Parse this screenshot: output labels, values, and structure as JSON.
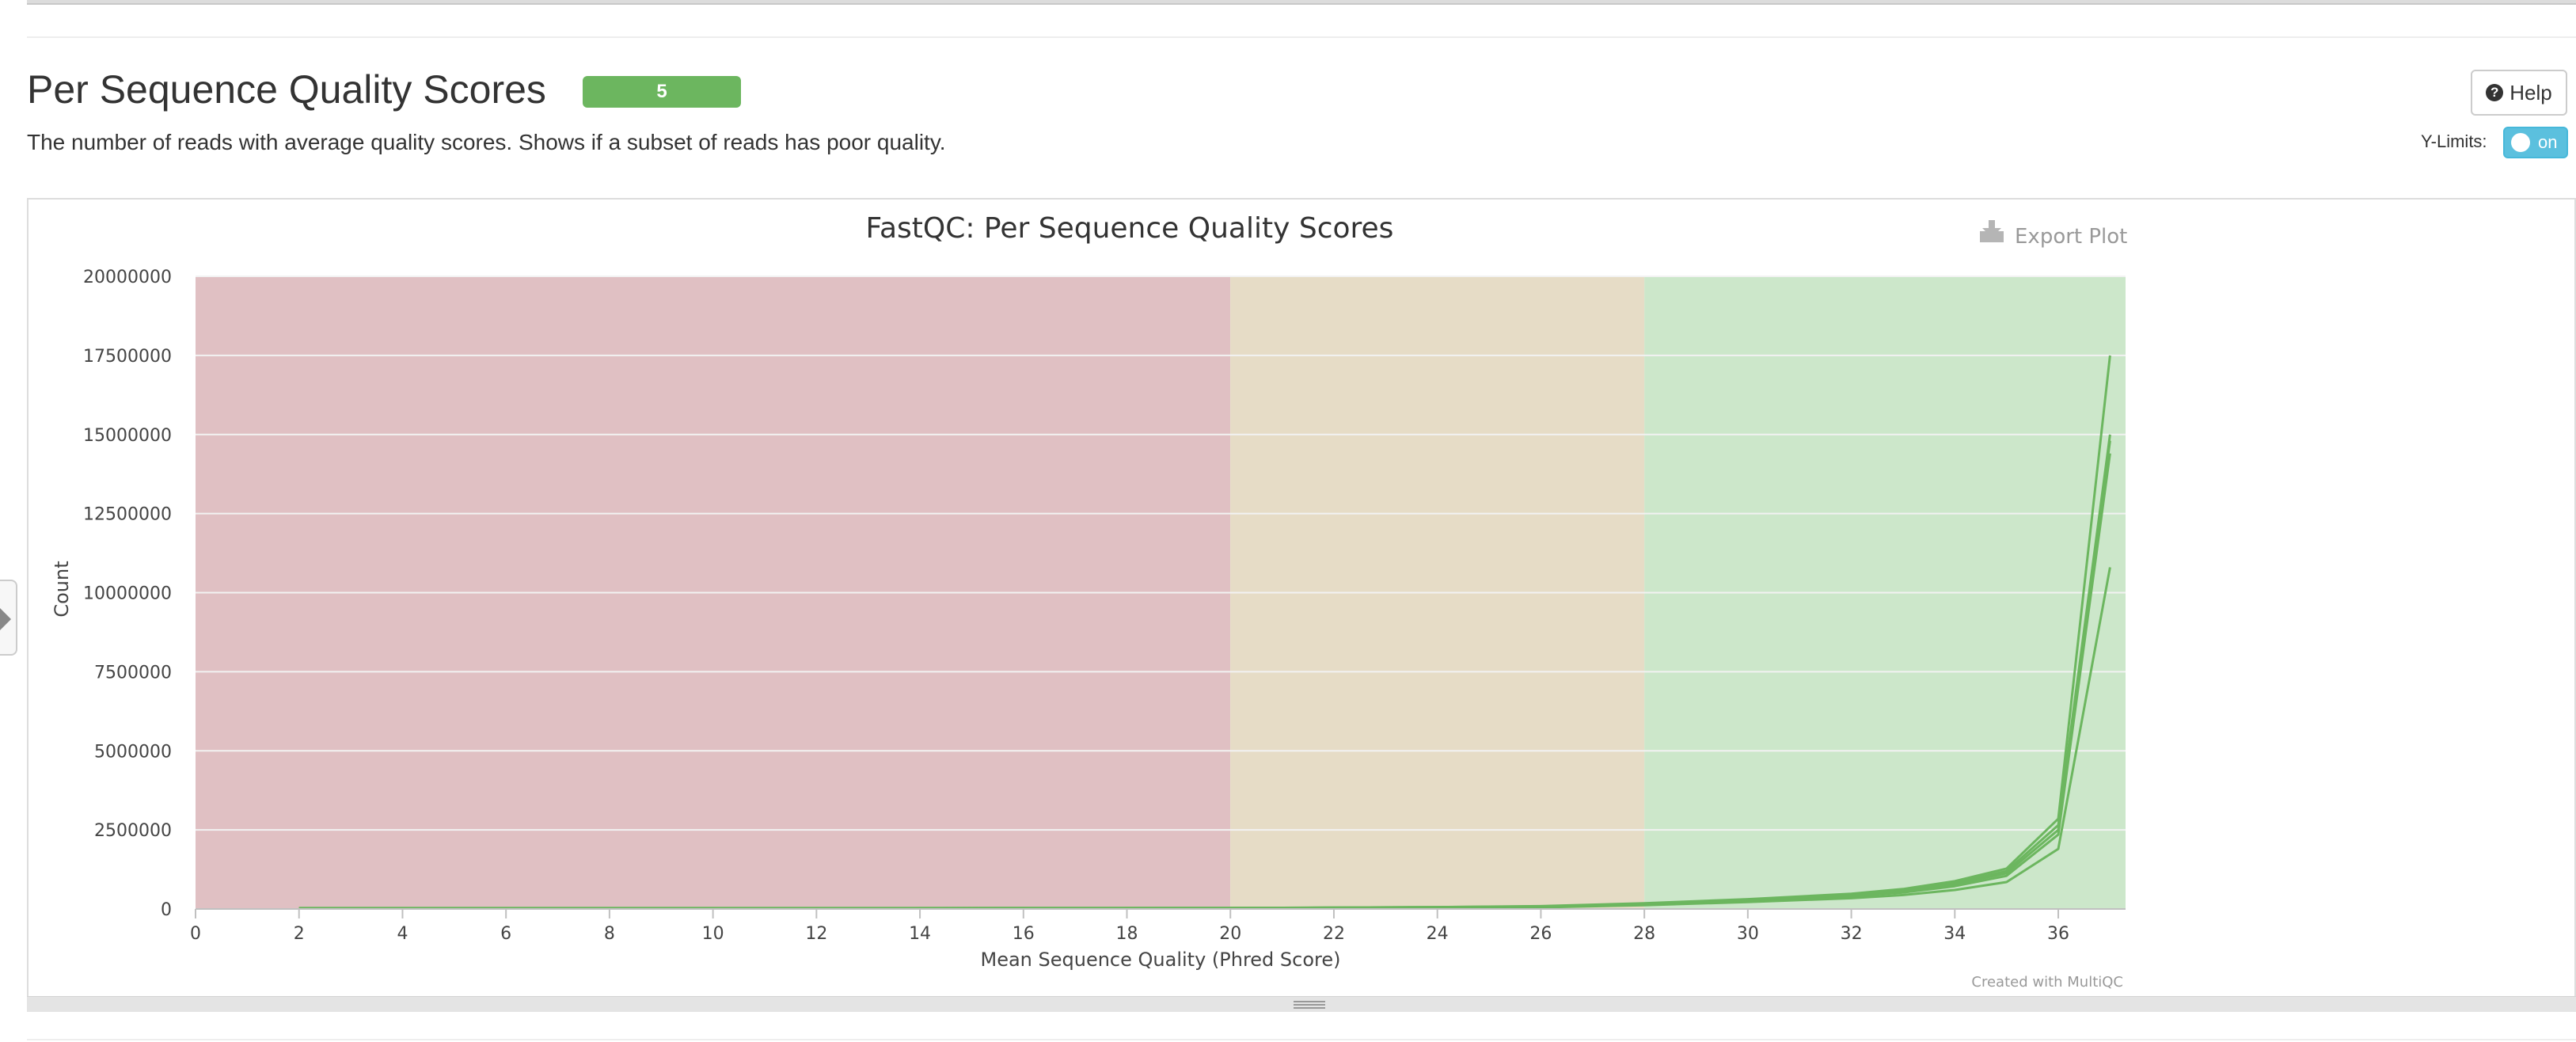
{
  "section": {
    "title": "Per Sequence Quality Scores",
    "badge": "5",
    "description": "The number of reads with average quality scores. Shows if a subset of reads has poor quality.",
    "help_label": "Help",
    "ylimits_label": "Y-Limits:",
    "ylimits_state": "on"
  },
  "plot": {
    "export_label": "Export Plot",
    "credit": "Created with MultiQC"
  },
  "colors": {
    "fail_band": "#e0c0c3",
    "warn_band": "#e6dcc6",
    "pass_band": "#cce7ca",
    "series_line": "#6cb65f",
    "badge": "#6cb65f",
    "toggle": "#5bc0de"
  },
  "chart_data": {
    "type": "line",
    "title": "FastQC: Per Sequence Quality Scores",
    "xlabel": "Mean Sequence Quality (Phred Score)",
    "ylabel": "Count",
    "xlim": [
      0,
      37.3
    ],
    "ylim": [
      0,
      20000000
    ],
    "x_ticks": [
      0,
      2,
      4,
      6,
      8,
      10,
      12,
      14,
      16,
      18,
      20,
      22,
      24,
      26,
      28,
      30,
      32,
      34,
      36
    ],
    "y_ticks": [
      0,
      2500000,
      5000000,
      7500000,
      10000000,
      12500000,
      15000000,
      17500000,
      20000000
    ],
    "bands": [
      {
        "from": 0,
        "to": 20,
        "color": "#e0c0c3"
      },
      {
        "from": 20,
        "to": 28,
        "color": "#e6dcc6"
      },
      {
        "from": 28,
        "to": 37.3,
        "color": "#cce7ca"
      }
    ],
    "grid": true,
    "legend": "none",
    "x": [
      2,
      20,
      24,
      26,
      28,
      30,
      32,
      33,
      34,
      35,
      36,
      37
    ],
    "series": [
      {
        "values": [
          20000,
          20000,
          30000,
          50000,
          120000,
          220000,
          340000,
          440000,
          600000,
          850000,
          1900000,
          10800000
        ]
      },
      {
        "values": [
          20000,
          30000,
          50000,
          70000,
          150000,
          260000,
          400000,
          520000,
          720000,
          1050000,
          2350000,
          14400000
        ]
      },
      {
        "values": [
          20000,
          30000,
          50000,
          80000,
          160000,
          280000,
          430000,
          560000,
          780000,
          1130000,
          2500000,
          14800000
        ]
      },
      {
        "values": [
          20000,
          30000,
          60000,
          80000,
          170000,
          290000,
          450000,
          590000,
          820000,
          1200000,
          2650000,
          15000000
        ]
      },
      {
        "values": [
          30000,
          30000,
          60000,
          90000,
          180000,
          310000,
          480000,
          630000,
          880000,
          1280000,
          2850000,
          17500000
        ]
      }
    ]
  }
}
